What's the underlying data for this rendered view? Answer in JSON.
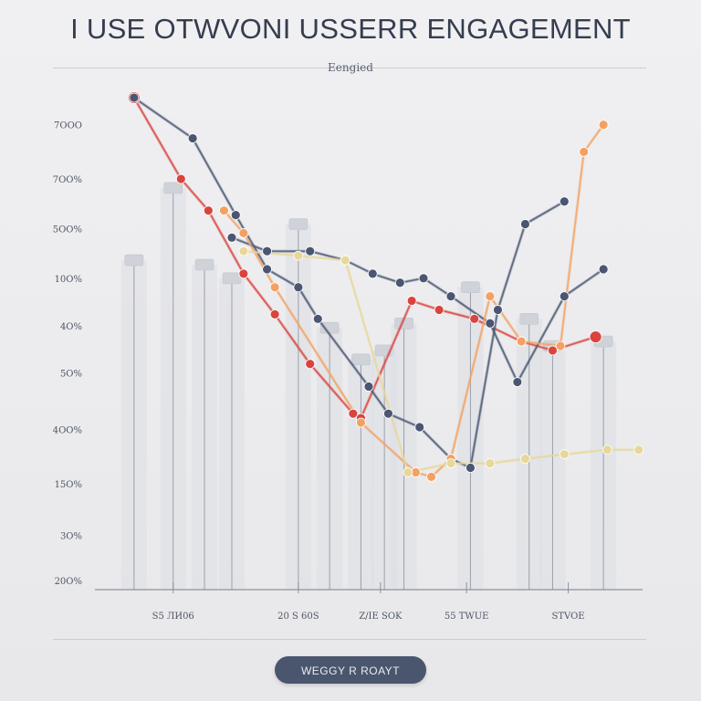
{
  "title": "I USE OTWVONI USSERR ENGAGEMENT",
  "subtitle": "Eengied",
  "button": {
    "label": "WEGGY R ROAYT"
  },
  "colors": {
    "background": "#ececee",
    "title": "#353d4f",
    "navy": "#4a5672",
    "red": "#d9443f",
    "orange": "#f3a162",
    "yellow": "#e7d79a",
    "button": "#4a566e"
  },
  "chart_data": {
    "type": "line",
    "xlabel": "",
    "ylabel": "",
    "x_ticks": [
      {
        "label": "S5 ЛИ06",
        "x": 1.5
      },
      {
        "label": "20 S 60S",
        "x": 4.7
      },
      {
        "label": "Z/IE SOK",
        "x": 6.8
      },
      {
        "label": "55 TWUE",
        "x": 9.0
      },
      {
        "label": "STVOE",
        "x": 11.6
      }
    ],
    "y_ticks": [
      {
        "label": "20O%",
        "y": 0.2
      },
      {
        "label": "3O%",
        "y": 1.2
      },
      {
        "label": "15O%",
        "y": 2.35
      },
      {
        "label": "4OO%",
        "y": 3.55
      },
      {
        "label": "5O%",
        "y": 4.8
      },
      {
        "label": "4O%",
        "y": 5.85
      },
      {
        "label": "10O%",
        "y": 6.9
      },
      {
        "label": "5OO%",
        "y": 8.0
      },
      {
        "label": "7OO%",
        "y": 9.1
      },
      {
        "label": "7OOO",
        "y": 10.3
      }
    ],
    "xlim": [
      -0.5,
      13.5
    ],
    "ylim": [
      0,
      10.8
    ],
    "background_bars": [
      {
        "x": 0.5,
        "value": 7.3
      },
      {
        "x": 1.5,
        "value": 8.9
      },
      {
        "x": 2.3,
        "value": 7.2
      },
      {
        "x": 3.0,
        "value": 6.9
      },
      {
        "x": 4.7,
        "value": 8.1
      },
      {
        "x": 5.5,
        "value": 5.8
      },
      {
        "x": 6.3,
        "value": 5.1
      },
      {
        "x": 6.9,
        "value": 5.3
      },
      {
        "x": 7.4,
        "value": 5.9
      },
      {
        "x": 9.1,
        "value": 6.7
      },
      {
        "x": 10.6,
        "value": 6.0
      },
      {
        "x": 11.2,
        "value": 5.4
      },
      {
        "x": 12.5,
        "value": 5.5
      }
    ],
    "series": [
      {
        "color": "#d9443f",
        "x": [
          0.5,
          1.7,
          2.4,
          3.3,
          4.1,
          5.0,
          6.1,
          6.3,
          7.6,
          8.3,
          9.2,
          10.4,
          11.2,
          12.3
        ],
        "y": [
          10.9,
          9.1,
          8.4,
          7.0,
          6.1,
          5.0,
          3.9,
          3.8,
          6.4,
          6.2,
          6.0,
          5.5,
          5.3,
          5.6
        ]
      },
      {
        "color": "#4a5672",
        "x": [
          0.5,
          2.0,
          3.1,
          3.9,
          4.7,
          5.2,
          6.5,
          7.0,
          7.8,
          8.6,
          9.1,
          9.8,
          10.5,
          11.5
        ],
        "y": [
          10.9,
          10.0,
          8.3,
          7.1,
          6.7,
          6.0,
          4.5,
          3.9,
          3.6,
          2.9,
          2.7,
          6.2,
          8.1,
          8.6
        ]
      },
      {
        "color": "#4a5672",
        "x": [
          3.0,
          3.9,
          5.0,
          5.9,
          6.6,
          7.3,
          7.9,
          8.6,
          9.6,
          10.3,
          11.5,
          12.5
        ],
        "y": [
          7.8,
          7.5,
          7.5,
          7.3,
          7.0,
          6.8,
          6.9,
          6.5,
          5.9,
          4.6,
          6.5,
          7.1
        ]
      },
      {
        "color": "#f3a162",
        "x": [
          2.8,
          3.3,
          4.1,
          6.3,
          7.7,
          8.1,
          8.6,
          9.6,
          10.4,
          11.4,
          12.0,
          12.5
        ],
        "y": [
          8.4,
          7.9,
          6.7,
          3.7,
          2.6,
          2.5,
          2.9,
          6.5,
          5.5,
          5.4,
          9.7,
          10.3
        ]
      },
      {
        "color": "#e7d79a",
        "x": [
          3.3,
          4.7,
          5.9,
          7.5,
          8.6,
          9.6,
          10.5,
          11.5,
          12.6,
          13.4
        ],
        "y": [
          7.5,
          7.4,
          7.3,
          2.6,
          2.8,
          2.8,
          2.9,
          3.0,
          3.1,
          3.1
        ]
      }
    ]
  }
}
